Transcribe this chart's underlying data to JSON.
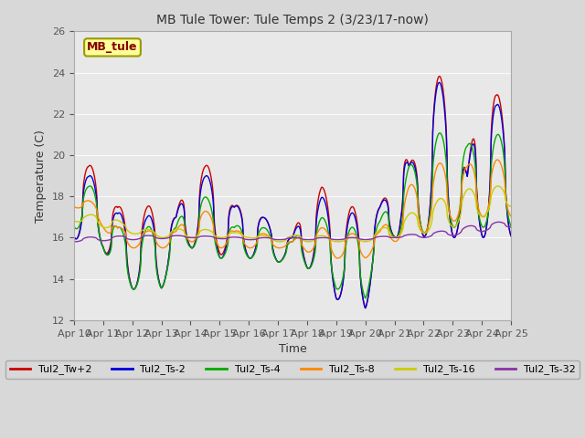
{
  "title": "MB Tule Tower: Tule Temps 2 (3/23/17-now)",
  "xlabel": "Time",
  "ylabel": "Temperature (C)",
  "ylim": [
    12,
    26
  ],
  "yticks": [
    12,
    14,
    16,
    18,
    20,
    22,
    24,
    26
  ],
  "xlim": [
    0,
    15
  ],
  "xtick_labels": [
    "Apr 10",
    "Apr 11",
    "Apr 12",
    "Apr 13",
    "Apr 14",
    "Apr 15",
    "Apr 16",
    "Apr 17",
    "Apr 18",
    "Apr 19",
    "Apr 20",
    "Apr 21",
    "Apr 22",
    "Apr 23",
    "Apr 24",
    "Apr 25"
  ],
  "legend_label": "MB_tule",
  "bg_color": "#d8d8d8",
  "plot_bg": "#e8e8e8",
  "series_colors": {
    "Tul2_Tw+2": "#cc0000",
    "Tul2_Ts-2": "#0000dd",
    "Tul2_Ts-4": "#00aa00",
    "Tul2_Ts-8": "#ff8800",
    "Tul2_Ts-16": "#cccc00",
    "Tul2_Ts-32": "#8833aa"
  },
  "lw": 1.0,
  "title_fontsize": 10,
  "axis_fontsize": 9,
  "tick_fontsize": 8
}
